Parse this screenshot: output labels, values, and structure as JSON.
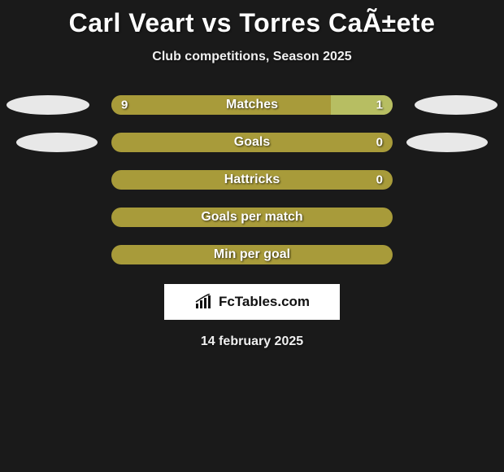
{
  "title": "Carl Veart vs Torres CaÃ±ete",
  "subtitle": "Club competitions, Season 2025",
  "date": "14 february 2025",
  "logo_text": "FcTables.com",
  "colors": {
    "left_bar": "#a89b3a",
    "right_bar": "#b7be62",
    "full_bar": "#a89b3a",
    "background": "#1a1a1a",
    "placeholder_main": "#e8e8e8",
    "placeholder_sub": "#e8e8e8"
  },
  "bars": [
    {
      "label": "Matches",
      "left_value": "9",
      "right_value": "1",
      "left_pct": 78,
      "right_pct": 22,
      "show_values": true,
      "show_placeholders": true
    },
    {
      "label": "Goals",
      "left_value": "",
      "right_value": "0",
      "left_pct": 100,
      "right_pct": 0,
      "show_values": true,
      "show_placeholders": true
    },
    {
      "label": "Hattricks",
      "left_value": "",
      "right_value": "0",
      "left_pct": 100,
      "right_pct": 0,
      "show_values": true,
      "show_placeholders": false
    },
    {
      "label": "Goals per match",
      "left_value": "",
      "right_value": "",
      "left_pct": 100,
      "right_pct": 0,
      "show_values": false,
      "show_placeholders": false
    },
    {
      "label": "Min per goal",
      "left_value": "",
      "right_value": "",
      "left_pct": 100,
      "right_pct": 0,
      "show_values": false,
      "show_placeholders": false
    }
  ]
}
